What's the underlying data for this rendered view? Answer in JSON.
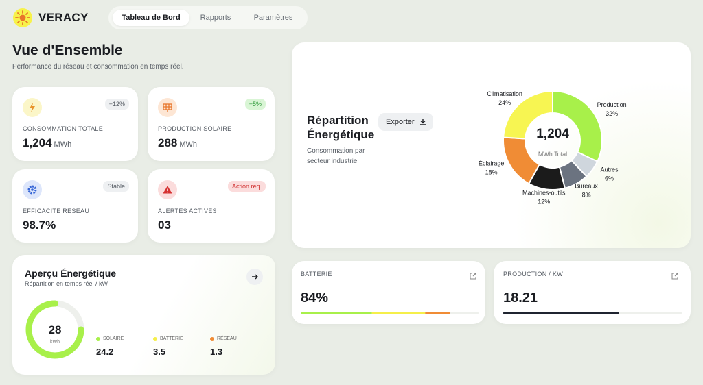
{
  "brand": "VERACY",
  "nav": [
    "Tableau de Bord",
    "Rapports",
    "Paramètres"
  ],
  "header": {
    "title": "Vue d'Ensemble",
    "subtitle": "Performance du réseau et consommation en temps réel."
  },
  "kpis": [
    {
      "label": "CONSOMMATION TOTALE",
      "value": "1,204",
      "unit": "MWh",
      "badge": "+12%"
    },
    {
      "label": "PRODUCTION SOLAIRE",
      "value": "288",
      "unit": "MWh",
      "badge": "+5%"
    },
    {
      "label": "EFFICACITÉ RÉSEAU",
      "value": "98.7%",
      "badge": "Stable"
    },
    {
      "label": "ALERTES ACTIVES",
      "value": "03",
      "badge": "Action req."
    }
  ],
  "overview": {
    "title": "Aperçu Énergétique",
    "subtitle": "Répartition en temps réel / kW",
    "gauge": {
      "value": 28,
      "unit": "kWh",
      "fill": 75,
      "color": "#a8f04a"
    },
    "items": [
      {
        "name": "SOLAIRE",
        "value": 24.2,
        "color": "#a8f04a"
      },
      {
        "name": "BATTERIE",
        "value": 3.5,
        "color": "#f5ef4a"
      },
      {
        "name": "RÉSEAU",
        "value": 1.3,
        "color": "#f08c35"
      }
    ]
  },
  "chart_data": {
    "type": "pie",
    "title": "Répartition Énergétique",
    "subtitle": "Consommation par secteur industriel",
    "button": "Exporter",
    "center_value": "1,204",
    "center_label": "MWh Total",
    "categories": [
      "Production",
      "Autres",
      "Bureaux",
      "Machines-outils",
      "Éclairage",
      "Climatisation"
    ],
    "values": [
      32,
      6,
      8,
      12,
      18,
      24
    ],
    "value_labels": [
      "32%",
      "6%",
      "8%",
      "12%",
      "18%",
      "24%"
    ],
    "colors": [
      "#a8f04a",
      "#cfd6dd",
      "#6b7380",
      "#1b1b1b",
      "#f08c35",
      "#f7f552"
    ]
  },
  "battery": {
    "label": "BATTERIE",
    "value": "84%",
    "segments": [
      {
        "value": 40,
        "color": "#a8f04a"
      },
      {
        "value": 30,
        "color": "#f5ef4a"
      },
      {
        "value": 14,
        "color": "#f08c35"
      }
    ]
  },
  "production": {
    "label": "PRODUCTION / KW",
    "value": "18.21",
    "fill": 65,
    "color": "#1f2430"
  }
}
